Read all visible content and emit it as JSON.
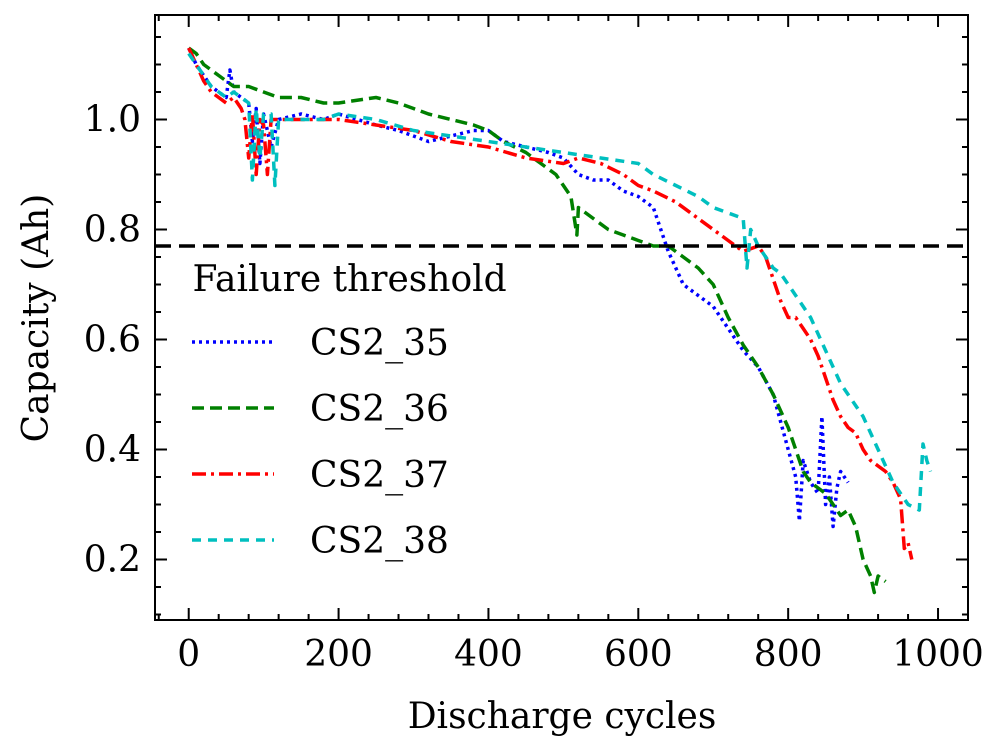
{
  "chart_data": {
    "type": "line",
    "xlabel": "Discharge cycles",
    "ylabel": "Capacity (Ah)",
    "xlim": [
      -45,
      1040
    ],
    "ylim": [
      0.09,
      1.19
    ],
    "xticks": [
      0,
      200,
      400,
      600,
      800,
      1000
    ],
    "xtick_labels": [
      "0",
      "200",
      "400",
      "600",
      "800",
      "1000"
    ],
    "yticks": [
      0.2,
      0.4,
      0.6,
      0.8,
      1.0
    ],
    "ytick_labels": [
      "0.2",
      "0.4",
      "0.6",
      "0.8",
      "1.0"
    ],
    "grid": false,
    "legend_position": "lower-left",
    "threshold": {
      "value": 0.77,
      "label": "Failure threshold",
      "color": "#000000"
    },
    "series": [
      {
        "name": "CS2_35",
        "color": "#0000ff",
        "dash": "dotted",
        "x": [
          0,
          10,
          20,
          30,
          40,
          50,
          55,
          60,
          70,
          80,
          85,
          90,
          95,
          100,
          110,
          120,
          150,
          180,
          200,
          250,
          280,
          300,
          320,
          350,
          380,
          400,
          420,
          450,
          480,
          500,
          520,
          540,
          560,
          580,
          600,
          620,
          640,
          660,
          680,
          700,
          720,
          740,
          760,
          780,
          790,
          800,
          810,
          815,
          820,
          830,
          840,
          845,
          850,
          855,
          860,
          865,
          870,
          880
        ],
        "y": [
          1.13,
          1.1,
          1.08,
          1.06,
          1.05,
          1.04,
          1.09,
          1.05,
          1.04,
          1.03,
          0.96,
          1.02,
          0.92,
          1.01,
          0.95,
          1.0,
          1.01,
          1.0,
          1.01,
          0.99,
          0.98,
          0.97,
          0.96,
          0.97,
          0.98,
          0.98,
          0.96,
          0.95,
          0.94,
          0.93,
          0.9,
          0.89,
          0.89,
          0.87,
          0.86,
          0.84,
          0.76,
          0.7,
          0.68,
          0.66,
          0.62,
          0.58,
          0.55,
          0.5,
          0.45,
          0.4,
          0.35,
          0.27,
          0.38,
          0.34,
          0.32,
          0.46,
          0.3,
          0.35,
          0.26,
          0.33,
          0.36,
          0.34
        ]
      },
      {
        "name": "CS2_36",
        "color": "#008000",
        "dash": "dashed",
        "x": [
          0,
          10,
          20,
          30,
          40,
          50,
          60,
          80,
          100,
          120,
          150,
          180,
          200,
          250,
          280,
          300,
          320,
          350,
          380,
          400,
          420,
          450,
          470,
          490,
          510,
          518,
          520,
          540,
          560,
          580,
          600,
          620,
          640,
          660,
          680,
          700,
          720,
          740,
          760,
          780,
          800,
          810,
          820,
          830,
          840,
          850,
          860,
          870,
          880,
          890,
          900,
          910,
          915,
          920,
          930
        ],
        "y": [
          1.13,
          1.12,
          1.1,
          1.09,
          1.08,
          1.07,
          1.06,
          1.06,
          1.05,
          1.04,
          1.04,
          1.03,
          1.03,
          1.04,
          1.03,
          1.02,
          1.01,
          1.0,
          0.99,
          0.98,
          0.96,
          0.94,
          0.92,
          0.9,
          0.86,
          0.79,
          0.84,
          0.82,
          0.8,
          0.79,
          0.78,
          0.77,
          0.77,
          0.75,
          0.73,
          0.7,
          0.64,
          0.59,
          0.55,
          0.5,
          0.44,
          0.4,
          0.36,
          0.34,
          0.33,
          0.32,
          0.3,
          0.28,
          0.29,
          0.26,
          0.2,
          0.17,
          0.14,
          0.17,
          0.16
        ]
      },
      {
        "name": "CS2_37",
        "color": "#ff0000",
        "dash": "dashdot",
        "x": [
          0,
          10,
          20,
          30,
          40,
          50,
          60,
          70,
          75,
          80,
          85,
          90,
          95,
          100,
          105,
          110,
          120,
          150,
          180,
          200,
          250,
          300,
          350,
          400,
          450,
          500,
          520,
          550,
          580,
          600,
          620,
          650,
          680,
          700,
          720,
          740,
          760,
          770,
          780,
          790,
          800,
          810,
          820,
          830,
          840,
          850,
          860,
          870,
          880,
          890,
          900,
          910,
          920,
          930,
          940,
          950,
          955,
          960,
          965
        ],
        "y": [
          1.13,
          1.1,
          1.07,
          1.05,
          1.04,
          1.03,
          1.04,
          1.02,
          1.0,
          0.93,
          1.01,
          0.9,
          1.0,
          0.99,
          0.9,
          1.0,
          1.0,
          1.0,
          1.0,
          1.0,
          0.99,
          0.98,
          0.96,
          0.95,
          0.93,
          0.92,
          0.93,
          0.92,
          0.9,
          0.88,
          0.87,
          0.85,
          0.82,
          0.8,
          0.78,
          0.76,
          0.77,
          0.75,
          0.71,
          0.67,
          0.64,
          0.64,
          0.62,
          0.6,
          0.57,
          0.53,
          0.49,
          0.46,
          0.44,
          0.43,
          0.4,
          0.38,
          0.37,
          0.36,
          0.34,
          0.31,
          0.22,
          0.23,
          0.2
        ]
      },
      {
        "name": "CS2_38",
        "color": "#00bfbf",
        "dash": "loose-dashed",
        "x": [
          0,
          10,
          20,
          30,
          40,
          50,
          60,
          70,
          80,
          85,
          90,
          95,
          100,
          110,
          115,
          120,
          150,
          180,
          200,
          250,
          300,
          350,
          400,
          450,
          500,
          550,
          600,
          620,
          650,
          680,
          700,
          720,
          740,
          745,
          750,
          760,
          770,
          780,
          790,
          800,
          810,
          820,
          830,
          840,
          850,
          860,
          870,
          880,
          890,
          900,
          910,
          920,
          930,
          940,
          950,
          960,
          975,
          980,
          985,
          990
        ],
        "y": [
          1.12,
          1.1,
          1.08,
          1.06,
          1.05,
          1.04,
          1.05,
          1.04,
          1.03,
          0.89,
          1.02,
          0.93,
          1.01,
          1.01,
          0.88,
          1.0,
          1.0,
          1.0,
          1.01,
          1.0,
          0.98,
          0.97,
          0.96,
          0.95,
          0.94,
          0.93,
          0.92,
          0.9,
          0.88,
          0.86,
          0.84,
          0.83,
          0.82,
          0.73,
          0.8,
          0.77,
          0.75,
          0.73,
          0.72,
          0.7,
          0.68,
          0.66,
          0.64,
          0.61,
          0.58,
          0.55,
          0.52,
          0.5,
          0.48,
          0.46,
          0.43,
          0.4,
          0.37,
          0.34,
          0.32,
          0.3,
          0.29,
          0.41,
          0.38,
          0.36
        ]
      }
    ]
  }
}
